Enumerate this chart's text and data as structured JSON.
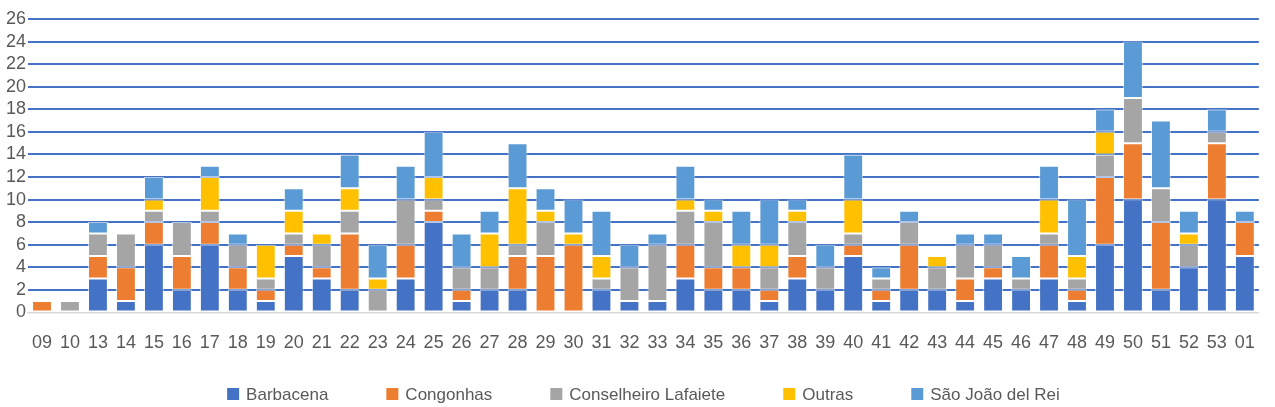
{
  "chart_data": {
    "type": "bar",
    "stacked": true,
    "grid": "y",
    "legend": "bottom",
    "categories": [
      "09",
      "10",
      "13",
      "14",
      "15",
      "16",
      "17",
      "18",
      "19",
      "20",
      "21",
      "22",
      "23",
      "24",
      "25",
      "26",
      "27",
      "28",
      "29",
      "30",
      "31",
      "32",
      "33",
      "34",
      "35",
      "36",
      "37",
      "38",
      "39",
      "40",
      "41",
      "42",
      "43",
      "44",
      "45",
      "46",
      "47",
      "48",
      "49",
      "50",
      "51",
      "52",
      "53",
      "01"
    ],
    "ylim": [
      0,
      26
    ],
    "yticks": [
      0,
      2,
      4,
      6,
      8,
      10,
      12,
      14,
      16,
      18,
      20,
      22,
      24,
      26
    ],
    "series": [
      {
        "name": "Barbacena",
        "color": "#4472c4",
        "values": [
          0,
          0,
          3,
          1,
          6,
          2,
          6,
          2,
          1,
          5,
          3,
          2,
          0,
          3,
          8,
          1,
          2,
          2,
          0,
          0,
          2,
          1,
          1,
          3,
          2,
          2,
          1,
          3,
          2,
          5,
          1,
          2,
          2,
          1,
          3,
          2,
          3,
          1,
          6,
          10,
          2,
          4,
          10,
          5
        ]
      },
      {
        "name": "Congonhas",
        "color": "#ed7d31",
        "values": [
          1,
          0,
          2,
          3,
          2,
          3,
          2,
          2,
          1,
          1,
          1,
          5,
          0,
          3,
          1,
          1,
          0,
          3,
          5,
          6,
          0,
          0,
          0,
          3,
          2,
          2,
          1,
          2,
          0,
          1,
          1,
          4,
          0,
          2,
          1,
          0,
          3,
          1,
          6,
          5,
          6,
          0,
          5,
          3
        ]
      },
      {
        "name": "Conselheiro Lafaiete",
        "color": "#a5a5a5",
        "values": [
          0,
          1,
          2,
          3,
          1,
          3,
          1,
          2,
          1,
          1,
          2,
          2,
          2,
          4,
          1,
          2,
          2,
          1,
          3,
          0,
          1,
          3,
          5,
          3,
          4,
          0,
          2,
          3,
          2,
          1,
          1,
          2,
          2,
          3,
          2,
          1,
          1,
          1,
          2,
          4,
          3,
          2,
          1,
          0
        ]
      },
      {
        "name": "Outras",
        "color": "#ffc000",
        "values": [
          0,
          0,
          0,
          0,
          1,
          0,
          3,
          0,
          3,
          2,
          1,
          2,
          1,
          0,
          2,
          0,
          3,
          5,
          1,
          1,
          2,
          0,
          0,
          1,
          1,
          2,
          2,
          1,
          0,
          3,
          0,
          0,
          1,
          0,
          0,
          0,
          3,
          2,
          2,
          0,
          0,
          1,
          0,
          0
        ]
      },
      {
        "name": "São João del Rei",
        "color": "#5b9bd5",
        "values": [
          0,
          0,
          1,
          0,
          2,
          0,
          1,
          1,
          0,
          2,
          0,
          3,
          3,
          3,
          4,
          3,
          2,
          4,
          2,
          3,
          4,
          2,
          1,
          3,
          1,
          3,
          4,
          1,
          2,
          4,
          1,
          1,
          0,
          1,
          1,
          2,
          3,
          5,
          2,
          5,
          6,
          2,
          2,
          1
        ]
      }
    ]
  }
}
